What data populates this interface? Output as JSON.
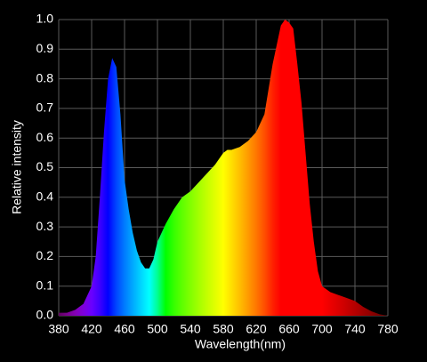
{
  "chart_data": {
    "type": "spectrum",
    "x_label": "Wavelength(nm)",
    "y_label": "Relative intensity",
    "x": [
      380,
      390,
      400,
      410,
      420,
      425,
      430,
      435,
      440,
      445,
      450,
      455,
      460,
      465,
      470,
      475,
      480,
      485,
      490,
      495,
      500,
      510,
      520,
      530,
      540,
      550,
      560,
      570,
      580,
      585,
      590,
      600,
      610,
      620,
      630,
      640,
      650,
      655,
      660,
      665,
      670,
      675,
      680,
      685,
      690,
      695,
      700,
      710,
      720,
      730,
      740,
      750,
      760,
      770,
      780
    ],
    "values": [
      0.01,
      0.01,
      0.02,
      0.04,
      0.1,
      0.2,
      0.4,
      0.62,
      0.8,
      0.87,
      0.84,
      0.68,
      0.46,
      0.36,
      0.28,
      0.22,
      0.18,
      0.16,
      0.16,
      0.19,
      0.25,
      0.31,
      0.36,
      0.4,
      0.42,
      0.45,
      0.48,
      0.51,
      0.55,
      0.56,
      0.56,
      0.57,
      0.59,
      0.62,
      0.68,
      0.85,
      0.98,
      1.0,
      0.99,
      0.97,
      0.85,
      0.72,
      0.55,
      0.38,
      0.25,
      0.15,
      0.1,
      0.08,
      0.07,
      0.06,
      0.05,
      0.03,
      0.015,
      0.005,
      0.0
    ],
    "xlim": [
      380,
      780
    ],
    "ylim": [
      0,
      1
    ],
    "xticks": [
      380,
      420,
      460,
      500,
      540,
      580,
      620,
      660,
      700,
      740,
      780
    ],
    "yticks": [
      {
        "value": 0,
        "label": "0.0"
      },
      0.1,
      0.2,
      0.3,
      0.4,
      0.5,
      0.6,
      0.7,
      0.8,
      0.9,
      {
        "value": 1,
        "label": "1.0"
      }
    ],
    "grid": true
  }
}
